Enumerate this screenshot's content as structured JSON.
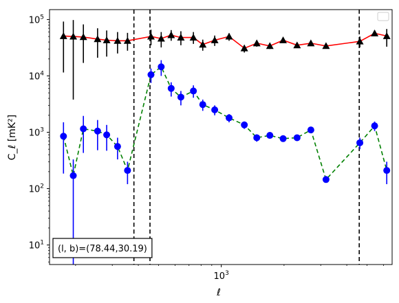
{
  "chart_data": {
    "type": "scatter",
    "title": "",
    "xlabel": "ℓ",
    "ylabel": "C_ℓ [mK²]",
    "xscale": "log",
    "yscale": "log",
    "xlim": [
      150,
      6600
    ],
    "ylim": [
      4.5,
      150000
    ],
    "x_ticks": [
      {
        "value": 1000,
        "label": "10^3"
      }
    ],
    "y_ticks": [
      {
        "value": 10,
        "label": "10^1"
      },
      {
        "value": 100,
        "label": "10^2"
      },
      {
        "value": 1000,
        "label": "10^3"
      },
      {
        "value": 10000,
        "label": "10^4"
      },
      {
        "value": 100000,
        "label": "10^5"
      }
    ],
    "vlines": [
      381,
      455,
      4590
    ],
    "annotation": "(l, b)=(78.44,30.19)",
    "legend_placement": "top-right",
    "series": [
      {
        "marker": "triangle",
        "color": "#000000",
        "line_color": "#ff0000",
        "line_style": "solid",
        "points": [
          {
            "x": 175,
            "y": 51000,
            "lo": 11500,
            "hi": 92000
          },
          {
            "x": 195,
            "y": 50000,
            "lo": 3800,
            "hi": 98000
          },
          {
            "x": 218,
            "y": 49000,
            "lo": 17000,
            "hi": 82000
          },
          {
            "x": 255,
            "y": 45000,
            "lo": 21000,
            "hi": 70000
          },
          {
            "x": 282,
            "y": 43000,
            "lo": 22000,
            "hi": 64000
          },
          {
            "x": 318,
            "y": 42000,
            "lo": 25000,
            "hi": 60000
          },
          {
            "x": 355,
            "y": 42000,
            "lo": 28000,
            "hi": 58000
          },
          {
            "x": 460,
            "y": 50000,
            "lo": 35000,
            "hi": 66000
          },
          {
            "x": 515,
            "y": 46000,
            "lo": 32000,
            "hi": 60000
          },
          {
            "x": 575,
            "y": 53000,
            "lo": 42000,
            "hi": 65000
          },
          {
            "x": 640,
            "y": 48000,
            "lo": 35000,
            "hi": 62000
          },
          {
            "x": 735,
            "y": 48000,
            "lo": 37000,
            "hi": 60000
          },
          {
            "x": 815,
            "y": 36000,
            "lo": 28000,
            "hi": 44000
          },
          {
            "x": 930,
            "y": 43000,
            "lo": 34000,
            "hi": 52000
          },
          {
            "x": 1090,
            "y": 50000,
            "lo": 42000,
            "hi": 57000
          },
          {
            "x": 1290,
            "y": 31000,
            "lo": 26000,
            "hi": 35000
          },
          {
            "x": 1480,
            "y": 38000,
            "lo": 33000,
            "hi": 43000
          },
          {
            "x": 1710,
            "y": 34000,
            "lo": 30000,
            "hi": 38000
          },
          {
            "x": 1980,
            "y": 43000,
            "lo": 40000,
            "hi": 46000
          },
          {
            "x": 2310,
            "y": 35000,
            "lo": 33000,
            "hi": 37000
          },
          {
            "x": 2690,
            "y": 38000,
            "lo": 35000,
            "hi": 41000
          },
          {
            "x": 3180,
            "y": 34000,
            "lo": 31000,
            "hi": 37000
          },
          {
            "x": 4620,
            "y": 41000,
            "lo": 32000,
            "hi": 50000
          },
          {
            "x": 5440,
            "y": 57000,
            "lo": 52000,
            "hi": 64000
          },
          {
            "x": 6220,
            "y": 51000,
            "lo": 33000,
            "hi": 68000
          }
        ]
      },
      {
        "marker": "circle",
        "color": "#0000ff",
        "line_color": "#008000",
        "line_style": "dashed",
        "points": [
          {
            "x": 175,
            "y": 850,
            "lo": 185,
            "hi": 1500
          },
          {
            "x": 195,
            "y": 170,
            "lo": 4.5,
            "hi": 330
          },
          {
            "x": 218,
            "y": 1150,
            "lo": 430,
            "hi": 1950
          },
          {
            "x": 255,
            "y": 1050,
            "lo": 480,
            "hi": 1650
          },
          {
            "x": 282,
            "y": 900,
            "lo": 470,
            "hi": 1350
          },
          {
            "x": 318,
            "y": 560,
            "lo": 330,
            "hi": 800
          },
          {
            "x": 355,
            "y": 210,
            "lo": 120,
            "hi": 300
          },
          {
            "x": 460,
            "y": 10500,
            "lo": 7500,
            "hi": 13500
          },
          {
            "x": 515,
            "y": 14500,
            "lo": 10000,
            "hi": 19000
          },
          {
            "x": 575,
            "y": 6000,
            "lo": 4300,
            "hi": 7700
          },
          {
            "x": 640,
            "y": 4200,
            "lo": 3000,
            "hi": 5400
          },
          {
            "x": 735,
            "y": 5400,
            "lo": 4100,
            "hi": 6800
          },
          {
            "x": 815,
            "y": 3100,
            "lo": 2400,
            "hi": 3800
          },
          {
            "x": 930,
            "y": 2500,
            "lo": 2000,
            "hi": 3000
          },
          {
            "x": 1090,
            "y": 1800,
            "lo": 1500,
            "hi": 2100
          },
          {
            "x": 1290,
            "y": 1350,
            "lo": 1150,
            "hi": 1550
          },
          {
            "x": 1480,
            "y": 800,
            "lo": 680,
            "hi": 920
          },
          {
            "x": 1710,
            "y": 880,
            "lo": 780,
            "hi": 980
          },
          {
            "x": 1980,
            "y": 770,
            "lo": 700,
            "hi": 840
          },
          {
            "x": 2310,
            "y": 800,
            "lo": 740,
            "hi": 860
          },
          {
            "x": 2690,
            "y": 1100,
            "lo": 1020,
            "hi": 1180
          },
          {
            "x": 3180,
            "y": 145,
            "lo": 130,
            "hi": 160
          },
          {
            "x": 4620,
            "y": 650,
            "lo": 500,
            "hi": 800
          },
          {
            "x": 5440,
            "y": 1300,
            "lo": 1050,
            "hi": 1550
          },
          {
            "x": 6220,
            "y": 210,
            "lo": 120,
            "hi": 300
          }
        ]
      }
    ]
  }
}
